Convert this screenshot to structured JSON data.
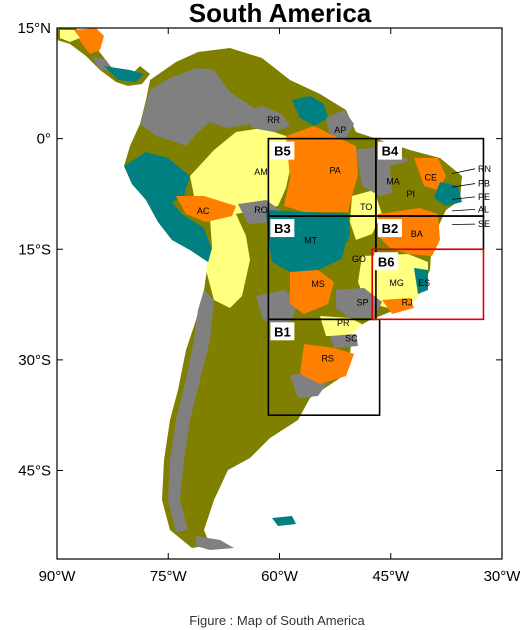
{
  "title": "South America",
  "caption": "Figure : Map of South America",
  "colors": {
    "olive": "#808000",
    "teal": "#008080",
    "gray": "#808080",
    "orange": "#ff7f00",
    "yellow": "#ffff80",
    "red_box": "#e00000"
  },
  "axes": {
    "x_ticks": [
      {
        "lon": -90,
        "label": "90°W"
      },
      {
        "lon": -75,
        "label": "75°W"
      },
      {
        "lon": -60,
        "label": "60°W"
      },
      {
        "lon": -45,
        "label": "45°W"
      },
      {
        "lon": -30,
        "label": "30°W"
      }
    ],
    "y_ticks": [
      {
        "lat": 15,
        "label": "15°N"
      },
      {
        "lat": 0,
        "label": "0°"
      },
      {
        "lat": -15,
        "label": "15°S"
      },
      {
        "lat": -30,
        "label": "30°S"
      },
      {
        "lat": -45,
        "label": "45°S"
      }
    ],
    "lon_range": [
      -90,
      -30
    ],
    "lat_range": [
      -57,
      15
    ]
  },
  "boxes": [
    {
      "label": "B1",
      "lon": [
        -61.5,
        -46.5
      ],
      "lat": [
        -37.5,
        -24.5
      ],
      "color": "black"
    },
    {
      "label": "B2",
      "lon": [
        -47,
        -32.5
      ],
      "lat": [
        -15,
        -10.5
      ],
      "color": "black"
    },
    {
      "label": "B3",
      "lon": [
        -61.5,
        -47
      ],
      "lat": [
        -24.5,
        -10.5
      ],
      "color": "black"
    },
    {
      "label": "B4",
      "lon": [
        -47,
        -32.5
      ],
      "lat": [
        -10.5,
        0
      ],
      "color": "black"
    },
    {
      "label": "B5",
      "lon": [
        -61.5,
        -47
      ],
      "lat": [
        -10.5,
        0
      ],
      "color": "black"
    },
    {
      "label": "B6",
      "lon": [
        -47.5,
        -32.5
      ],
      "lat": [
        -24.5,
        -15
      ],
      "color": "red"
    }
  ],
  "states": [
    {
      "code": "RR",
      "lon": -60.8,
      "lat": 2.5
    },
    {
      "code": "AP",
      "lon": -51.8,
      "lat": 1.2
    },
    {
      "code": "AM",
      "lon": -62.5,
      "lat": -4.5
    },
    {
      "code": "PA",
      "lon": -52.5,
      "lat": -4.3
    },
    {
      "code": "MA",
      "lon": -44.7,
      "lat": -5.8
    },
    {
      "code": "CE",
      "lon": -39.6,
      "lat": -5.3
    },
    {
      "code": "PI",
      "lon": -42.3,
      "lat": -7.5
    },
    {
      "code": "RO",
      "lon": -62.5,
      "lat": -9.7
    },
    {
      "code": "AC",
      "lon": -70.3,
      "lat": -9.8
    },
    {
      "code": "TO",
      "lon": -48.3,
      "lat": -9.3
    },
    {
      "code": "BA",
      "lon": -41.5,
      "lat": -12.9
    },
    {
      "code": "MT",
      "lon": -55.8,
      "lat": -13.8
    },
    {
      "code": "GO",
      "lon": -49.3,
      "lat": -16.3
    },
    {
      "code": "MG",
      "lon": -44.2,
      "lat": -19.6
    },
    {
      "code": "ES",
      "lon": -40.5,
      "lat": -19.6
    },
    {
      "code": "MS",
      "lon": -54.8,
      "lat": -19.7
    },
    {
      "code": "SP",
      "lon": -48.8,
      "lat": -22.2
    },
    {
      "code": "RJ",
      "lon": -42.8,
      "lat": -22.2
    },
    {
      "code": "PR",
      "lon": -51.4,
      "lat": -25.0
    },
    {
      "code": "SC",
      "lon": -50.3,
      "lat": -27.1
    },
    {
      "code": "RS",
      "lon": -53.5,
      "lat": -29.8
    }
  ],
  "callout_states": [
    {
      "code": "RN",
      "lat": -4.5
    },
    {
      "code": "PB",
      "lat": -6.5
    },
    {
      "code": "PE",
      "lat": -8.3
    },
    {
      "code": "AL",
      "lat": -10.0
    },
    {
      "code": "SE",
      "lat": -12.0
    }
  ]
}
